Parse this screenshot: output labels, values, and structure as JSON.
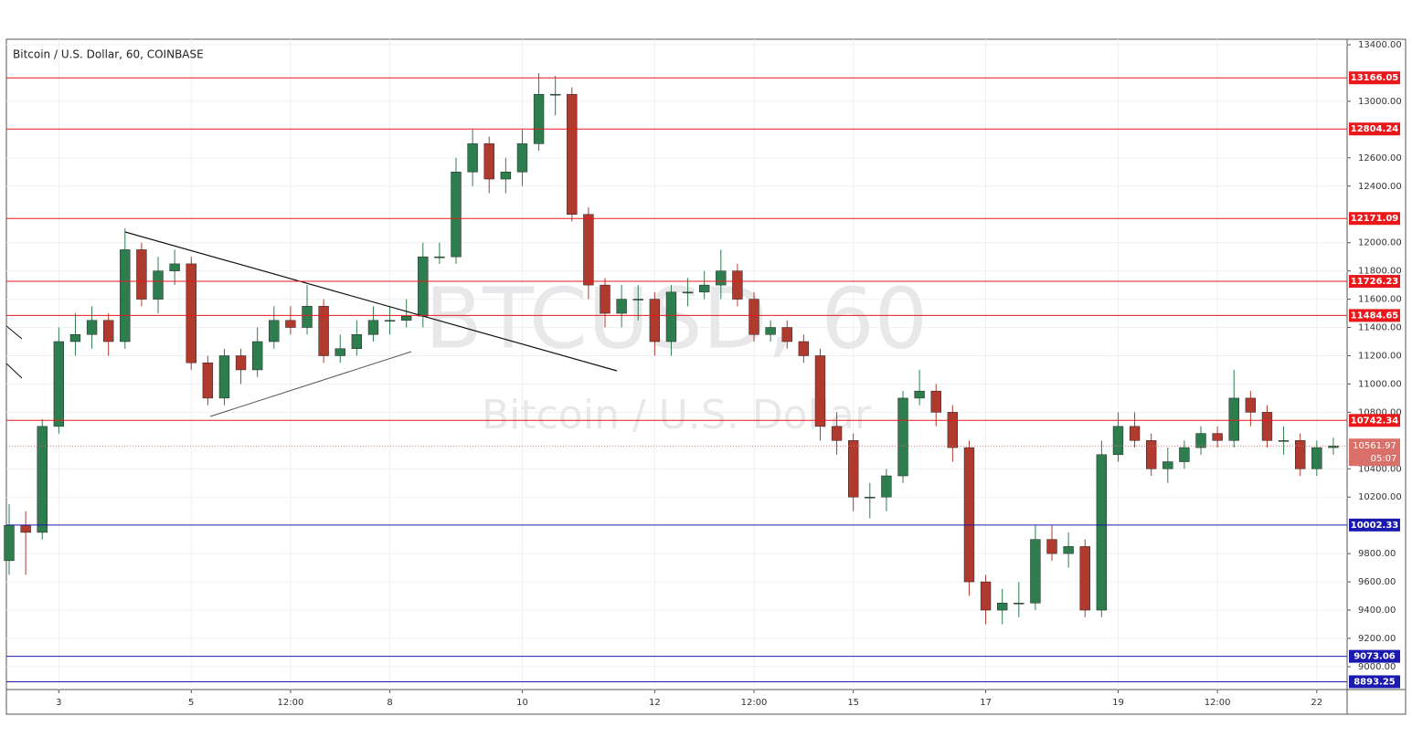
{
  "chart_data": {
    "type": "candlestick",
    "title": "Bitcoin / U.S. Dollar, 60, COINBASE",
    "watermark": "BTCUSD, 60",
    "watermark_subtitle": "Bitcoin / U.S. Dollar",
    "x": [
      6,
      12,
      18,
      24,
      30,
      36,
      42,
      48,
      54,
      60,
      66,
      72,
      78,
      84,
      90,
      96,
      102,
      108,
      114,
      120,
      126,
      132,
      138,
      144,
      150,
      156,
      162,
      168,
      174,
      180,
      186,
      192,
      198,
      204,
      210,
      216,
      222,
      228,
      234,
      240,
      246,
      252,
      258,
      264,
      270,
      276,
      282,
      288,
      294,
      300,
      306,
      312,
      318,
      324,
      330,
      336,
      342,
      348,
      354,
      360,
      366,
      372,
      378,
      384,
      390,
      396,
      402,
      408,
      414,
      420,
      426,
      432,
      438,
      444,
      450,
      456,
      462,
      468,
      474,
      480,
      486
    ],
    "open": [
      9750,
      10000,
      9950,
      10700,
      11300,
      11350,
      11450,
      11300,
      11950,
      11600,
      11800,
      11850,
      11150,
      10900,
      11200,
      11100,
      11300,
      11450,
      11400,
      11550,
      11200,
      11250,
      11350,
      11450,
      11450,
      11480,
      11900,
      11900,
      12500,
      12700,
      12450,
      12500,
      12700,
      13050,
      13050,
      12200,
      11700,
      11500,
      11600,
      11600,
      11300,
      11650,
      11650,
      11700,
      11800,
      11600,
      11350,
      11400,
      11300,
      11200,
      10700,
      10600,
      10200,
      10200,
      10350,
      10900,
      10950,
      10800,
      10550,
      9600,
      9400,
      9450,
      9450,
      9900,
      9800,
      9850,
      9400,
      10500,
      10700,
      10600,
      10400,
      10450,
      10550,
      10650,
      10600,
      10900,
      10800,
      10600,
      10600,
      10400,
      10550
    ],
    "high": [
      10150,
      10100,
      10750,
      11400,
      11500,
      11550,
      11500,
      12100,
      12000,
      11900,
      11950,
      11900,
      11200,
      11250,
      11250,
      11400,
      11550,
      11550,
      11700,
      11600,
      11350,
      11450,
      11550,
      11550,
      11600,
      12000,
      12000,
      12600,
      12800,
      12750,
      12600,
      12800,
      13200,
      13180,
      13100,
      12250,
      11750,
      11700,
      11700,
      11650,
      11700,
      11750,
      11800,
      11950,
      11850,
      11650,
      11450,
      11450,
      11350,
      11250,
      10800,
      10650,
      10300,
      10400,
      10950,
      11100,
      11000,
      10850,
      10600,
      9650,
      9550,
      9600,
      10000,
      10000,
      9950,
      9900,
      10600,
      10800,
      10800,
      10650,
      10550,
      10600,
      10700,
      10700,
      11100,
      10950,
      10850,
      10700,
      10650,
      10600,
      10620
    ],
    "low": [
      9650,
      9650,
      9900,
      10650,
      11200,
      11250,
      11200,
      11250,
      11550,
      11500,
      11700,
      11100,
      10850,
      10850,
      11000,
      11050,
      11250,
      11350,
      11350,
      11150,
      11150,
      11200,
      11300,
      11350,
      11400,
      11400,
      11850,
      11850,
      12400,
      12350,
      12350,
      12400,
      12650,
      12900,
      12150,
      11600,
      11400,
      11400,
      11450,
      11200,
      11200,
      11550,
      11600,
      11600,
      11550,
      11300,
      11300,
      11250,
      11150,
      10600,
      10500,
      10100,
      10050,
      10100,
      10300,
      10850,
      10700,
      10450,
      9500,
      9300,
      9300,
      9350,
      9400,
      9750,
      9700,
      9350,
      9350,
      10450,
      10550,
      10350,
      10300,
      10400,
      10500,
      10550,
      10550,
      10700,
      10550,
      10500,
      10350,
      10350,
      10500
    ],
    "close": [
      10000,
      9950,
      10700,
      11300,
      11350,
      11450,
      11300,
      11950,
      11600,
      11800,
      11850,
      11150,
      10900,
      11200,
      11100,
      11300,
      11450,
      11400,
      11550,
      11200,
      11250,
      11350,
      11450,
      11450,
      11480,
      11900,
      11900,
      12500,
      12700,
      12450,
      12500,
      12700,
      13050,
      13050,
      12200,
      11700,
      11500,
      11600,
      11600,
      11300,
      11650,
      11650,
      11700,
      11800,
      11600,
      11350,
      11400,
      11300,
      11200,
      10700,
      10600,
      10200,
      10200,
      10350,
      10900,
      10950,
      10800,
      10550,
      9600,
      9400,
      9450,
      9450,
      9900,
      9800,
      9850,
      9400,
      10500,
      10700,
      10600,
      10400,
      10450,
      10550,
      10650,
      10600,
      10900,
      10800,
      10600,
      10600,
      10400,
      10550,
      10562
    ],
    "up_color": "#2e7d4f",
    "down_color": "#b03a2e",
    "xlim": [
      5,
      491
    ],
    "ylim": [
      8838,
      13439
    ],
    "xticks": [
      {
        "value": 24,
        "label": "3"
      },
      {
        "value": 72,
        "label": "5"
      },
      {
        "value": 108,
        "label": "12:00"
      },
      {
        "value": 144,
        "label": "8"
      },
      {
        "value": 192,
        "label": "10"
      },
      {
        "value": 240,
        "label": "12"
      },
      {
        "value": 276,
        "label": "12:00"
      },
      {
        "value": 312,
        "label": "15"
      },
      {
        "value": 360,
        "label": "17"
      },
      {
        "value": 408,
        "label": "19"
      },
      {
        "value": 444,
        "label": "12:00"
      },
      {
        "value": 480,
        "label": "22"
      }
    ],
    "yticks": [
      {
        "value": 13400,
        "label": "13400.00"
      },
      {
        "value": 13000,
        "label": "13000.00"
      },
      {
        "value": 12600,
        "label": "12600.00"
      },
      {
        "value": 12400,
        "label": "12400.00"
      },
      {
        "value": 12000,
        "label": "12000.00"
      },
      {
        "value": 11800,
        "label": "11800.00"
      },
      {
        "value": 11600,
        "label": "11600.00"
      },
      {
        "value": 11400,
        "label": "11400.00"
      },
      {
        "value": 11200,
        "label": "11200.00"
      },
      {
        "value": 11000,
        "label": "11000.00"
      },
      {
        "value": 10800,
        "label": "10800.00"
      },
      {
        "value": 10400,
        "label": "10400.00"
      },
      {
        "value": 10200,
        "label": "10200.00"
      },
      {
        "value": 9800,
        "label": "9800.00"
      },
      {
        "value": 9600,
        "label": "9600.00"
      },
      {
        "value": 9400,
        "label": "9400.00"
      },
      {
        "value": 9200,
        "label": "9200.00"
      },
      {
        "value": 9000,
        "label": "9000.00"
      }
    ],
    "grid": true,
    "levels": [
      {
        "value": 13166.05,
        "color": "#e8181b"
      },
      {
        "value": 12804.24,
        "color": "#e8181b"
      },
      {
        "value": 12171.09,
        "color": "#e8181b"
      },
      {
        "value": 11726.23,
        "color": "#e8181b"
      },
      {
        "value": 11484.65,
        "color": "#e8181b"
      },
      {
        "value": 10742.34,
        "color": "#e8181b"
      },
      {
        "value": 10002.33,
        "color": "#1a1ab0"
      },
      {
        "value": 9073.06,
        "color": "#1a1ab0"
      },
      {
        "value": 8893.25,
        "color": "#1a1ab0"
      }
    ],
    "last_price": {
      "value": 10561.97,
      "color": "#d9706a",
      "countdown": "05:07"
    }
  }
}
